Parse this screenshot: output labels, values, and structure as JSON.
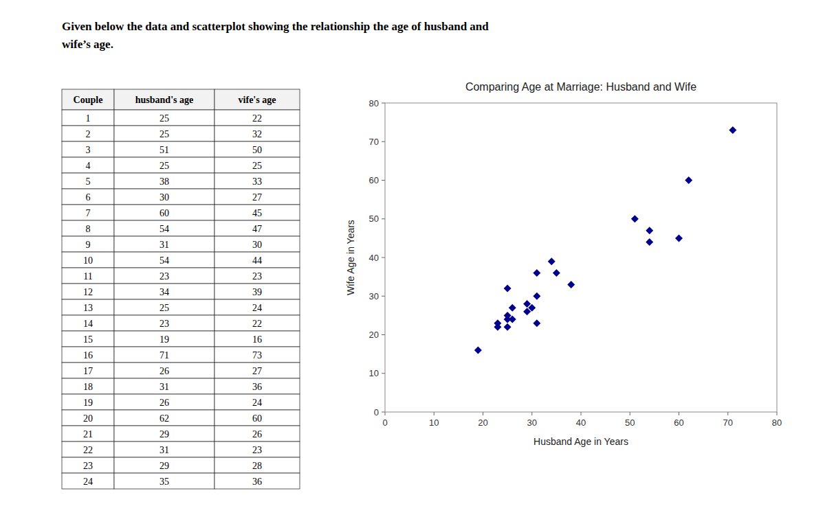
{
  "chart_data": [
    {
      "type": "table",
      "title": "Given below the data and scatterplot showing the relationship the age of husband and",
      "subtitle": "wife’s age.",
      "columns": [
        "Couple",
        "husband's age",
        "vife's age"
      ],
      "categories": [
        1,
        2,
        3,
        4,
        5,
        6,
        7,
        8,
        9,
        10,
        11,
        12,
        13,
        14,
        15,
        16,
        17,
        18,
        19,
        20,
        21,
        22,
        23,
        24
      ],
      "series": [
        {
          "values": [
            25,
            25,
            51,
            25,
            38,
            30,
            60,
            54,
            31,
            54,
            23,
            34,
            25,
            23,
            19,
            71,
            26,
            31,
            26,
            62,
            29,
            31,
            29,
            35
          ]
        },
        {
          "values": [
            22,
            32,
            50,
            25,
            33,
            27,
            45,
            47,
            30,
            44,
            23,
            39,
            24,
            22,
            16,
            73,
            27,
            36,
            24,
            60,
            26,
            23,
            28,
            36
          ]
        }
      ]
    },
    {
      "type": "scatter",
      "title": "Comparing Age at Marriage: Husband and Wife",
      "xlabel": "Husband Age in Years",
      "ylabel": "Wife Age in Years",
      "x": [
        25,
        25,
        51,
        25,
        38,
        30,
        60,
        54,
        31,
        54,
        23,
        34,
        25,
        23,
        19,
        71,
        26,
        31,
        26,
        62,
        29,
        31,
        29,
        35
      ],
      "values": [
        22,
        32,
        50,
        25,
        33,
        27,
        45,
        47,
        30,
        44,
        23,
        39,
        24,
        22,
        16,
        73,
        27,
        36,
        24,
        60,
        26,
        23,
        28,
        36
      ],
      "color": "#00008B",
      "marker": "diamond",
      "xlim": [
        0,
        80
      ],
      "ylim": [
        0,
        80
      ],
      "xticks": [
        0,
        10,
        20,
        30,
        40,
        50,
        60,
        70,
        80
      ],
      "yticks": [
        0,
        10,
        20,
        30,
        40,
        50,
        60,
        70,
        80
      ],
      "grid": false
    }
  ]
}
